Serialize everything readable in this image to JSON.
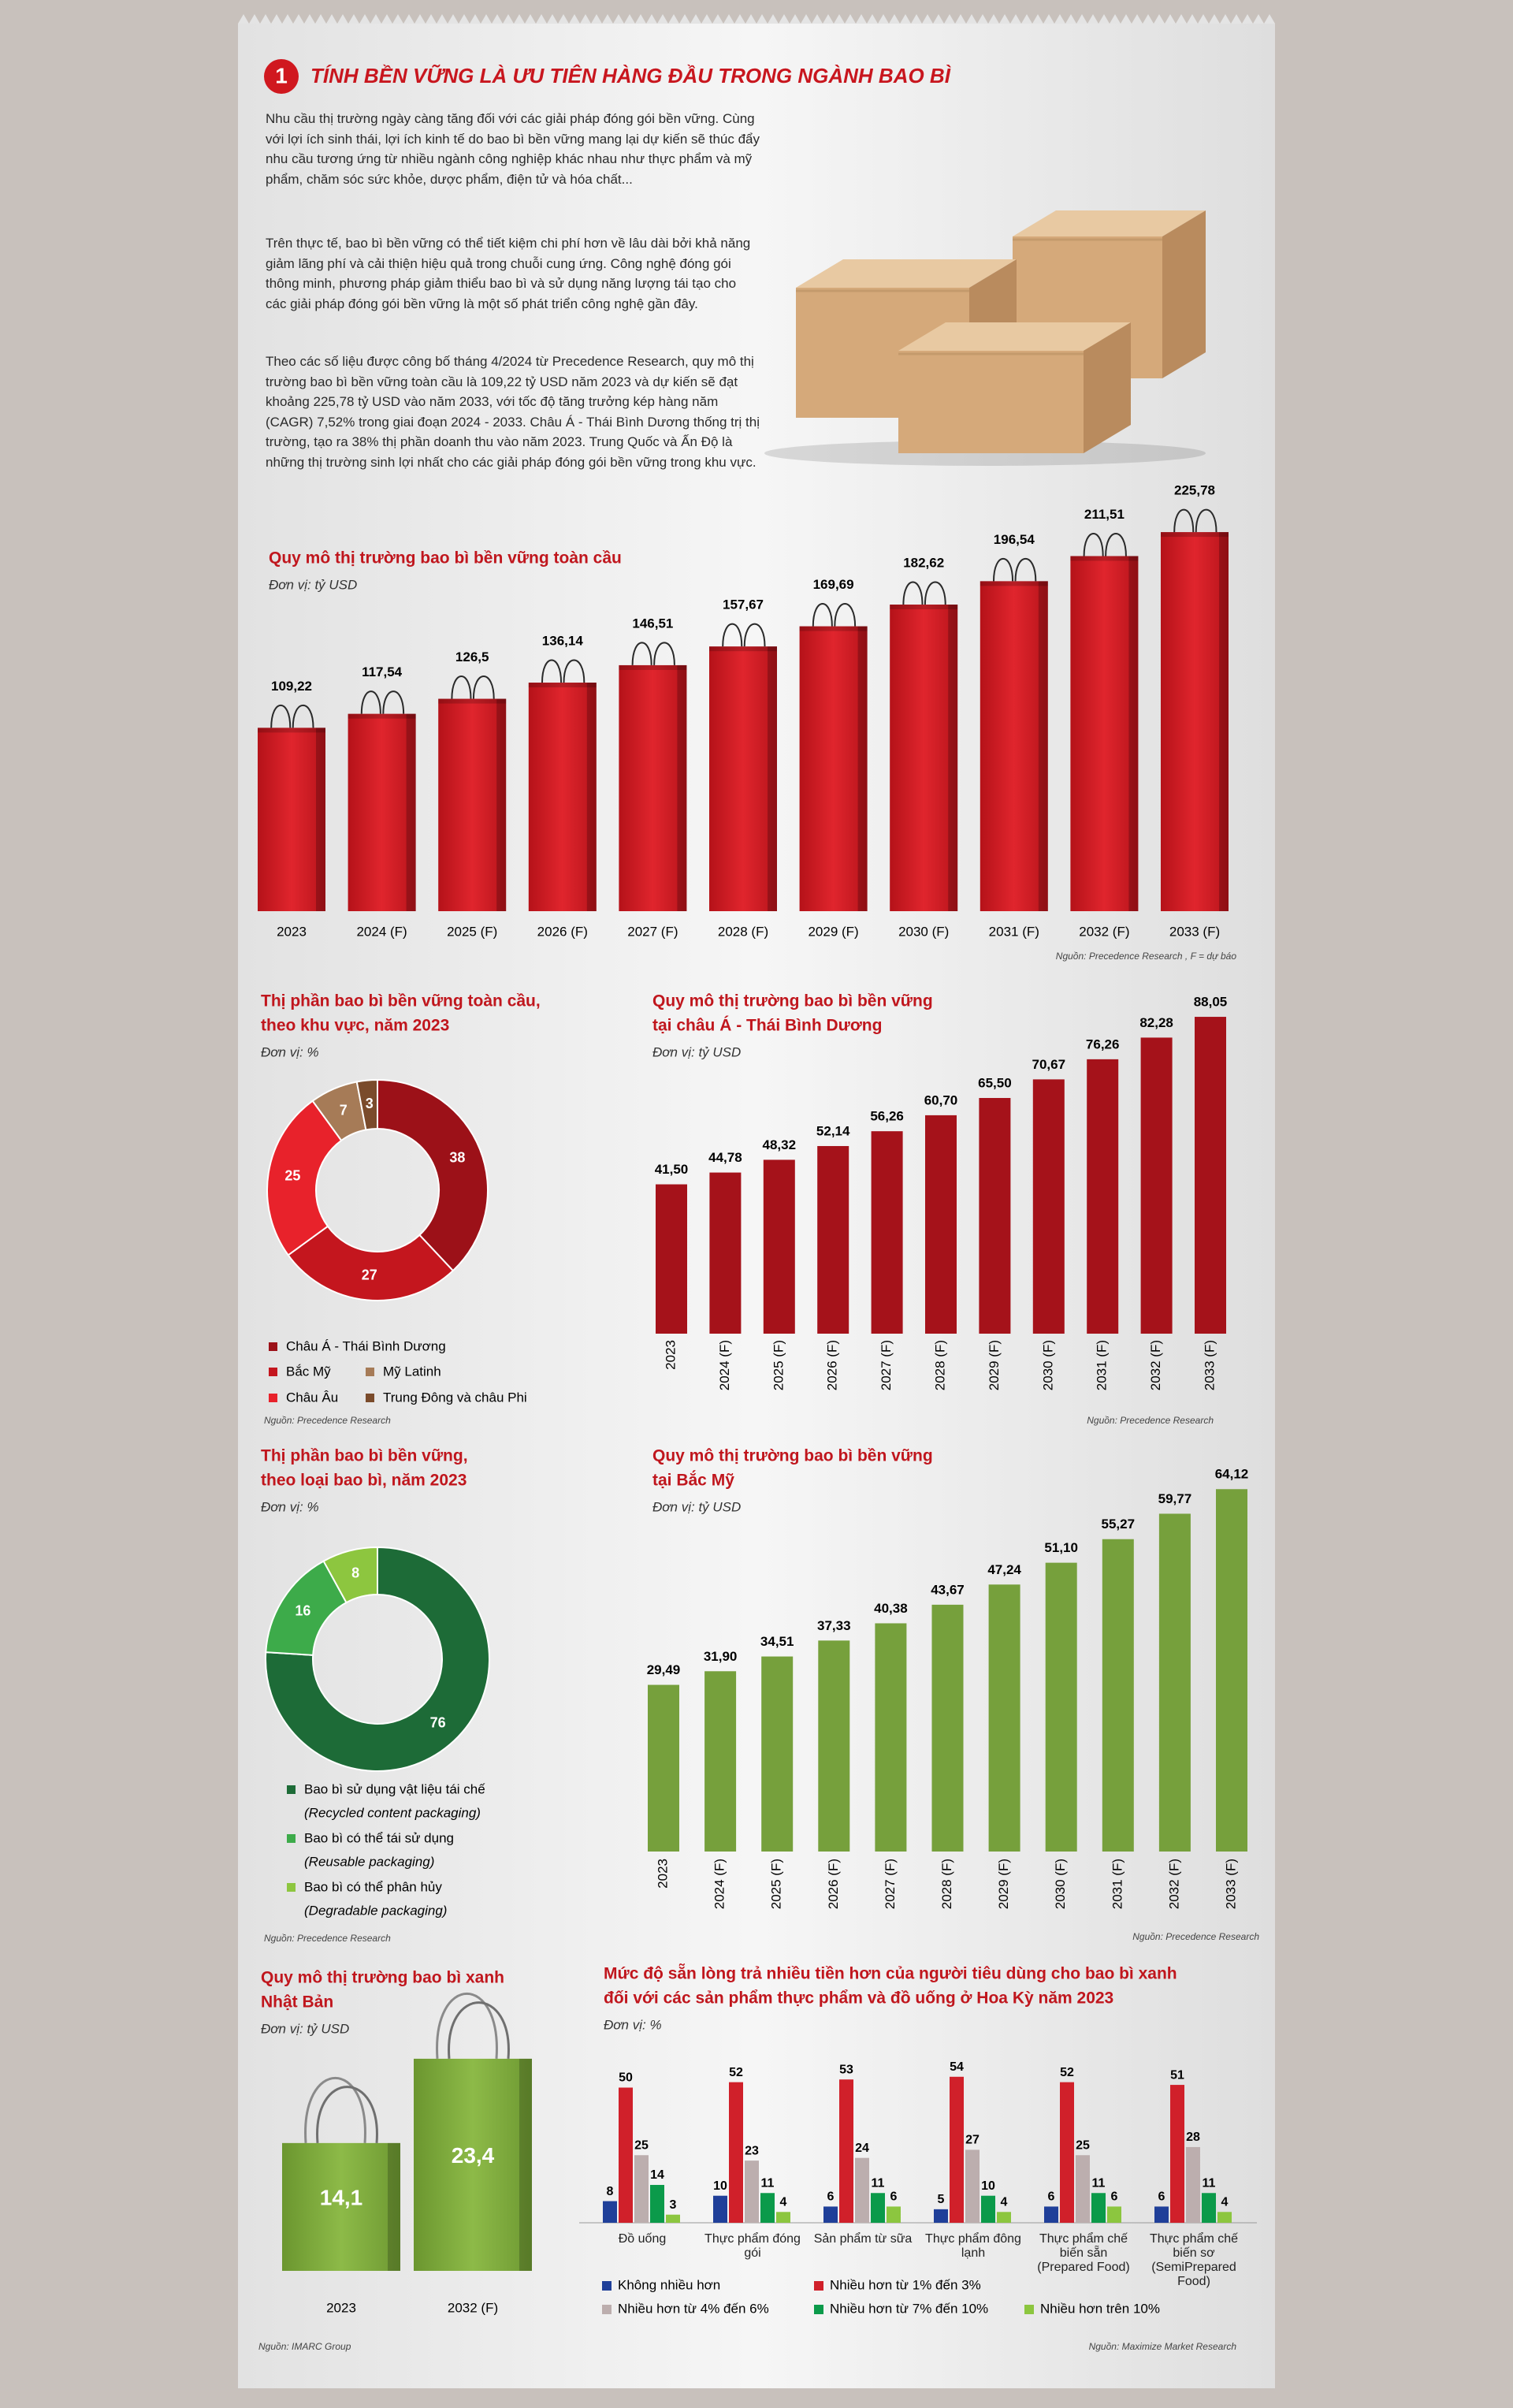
{
  "header": {
    "number": "1",
    "title": "TÍNH BỀN VỮNG LÀ ƯU TIÊN HÀNG ĐẦU TRONG NGÀNH BAO BÌ"
  },
  "paragraphs": [
    "Nhu cầu thị trường ngày càng tăng đối với các giải pháp đóng gói bền vững. Cùng với lợi ích sinh thái, lợi ích kinh tế do bao bì bền vững mang lại dự kiến sẽ thúc đẩy nhu cầu tương ứng từ nhiều ngành công nghiệp khác nhau như thực phẩm và mỹ phẩm, chăm sóc sức khỏe, dược phẩm, điện tử và hóa chất...",
    "Trên thực tế, bao bì bền vững có thể tiết kiệm chi phí hơn về lâu dài bởi khả năng giảm lãng phí và cải thiện hiệu quả trong chuỗi cung ứng. Công nghệ đóng gói thông minh, phương pháp giảm thiểu bao bì và sử dụng năng lượng tái tạo cho các giải pháp đóng gói bền vững là một số phát triển công nghệ gần đây.",
    "Theo các số liệu được công bố tháng 4/2024 từ Precedence Research, quy mô thị trường bao bì bền vững toàn cầu là 109,22 tỷ USD năm 2023 và dự kiến sẽ đạt khoảng 225,78 tỷ USD vào năm 2033, với tốc độ tăng trưởng kép hàng năm (CAGR) 7,52% trong giai đoạn 2024 - 2033. Châu Á - Thái Bình Dương thống trị thị trường, tạo ra 38% thị phần doanh thu vào năm 2023. Trung Quốc và Ấn Độ là những thị trường sinh lợi nhất cho các giải pháp đóng gói bền vững trong khu vực."
  ],
  "chart_data": [
    {
      "type": "bar",
      "title": [
        "Quy mô thị trường bao bì bền vững toàn cầu"
      ],
      "subtitle": "Đơn vị: tỷ USD",
      "categories": [
        "2023",
        "2024 (F)",
        "2025 (F)",
        "2026 (F)",
        "2027 (F)",
        "2028 (F)",
        "2029 (F)",
        "2030 (F)",
        "2031 (F)",
        "2032 (F)",
        "2033 (F)"
      ],
      "values": [
        109.22,
        117.54,
        126.5,
        136.14,
        146.51,
        157.67,
        169.69,
        182.62,
        196.54,
        211.51,
        225.78
      ],
      "value_labels": [
        "109,22",
        "117,54",
        "126,5",
        "136,14",
        "146,51",
        "157,67",
        "169,69",
        "182,62",
        "196,54",
        "211,51",
        "225,78"
      ],
      "color": "#c8161e",
      "source": "Nguồn: Precedence Research , F = dự báo"
    },
    {
      "type": "pie",
      "title": [
        "Thị phần bao bì bền vững toàn cầu,",
        "theo khu vực, năm 2023"
      ],
      "subtitle": "Đơn vị: %",
      "categories": [
        "Châu Á - Thái Bình Dương",
        "Bắc Mỹ",
        "Châu Âu",
        "Mỹ Latinh",
        "Trung Đông và châu Phi"
      ],
      "values": [
        38,
        27,
        25,
        7,
        3
      ],
      "colors": [
        "#9c1118",
        "#c4161e",
        "#e8222b",
        "#a67b57",
        "#7a4b2b"
      ],
      "source": "Nguồn: Precedence Research"
    },
    {
      "type": "bar",
      "title": [
        "Quy mô thị trường bao bì bền vững",
        "tại châu Á - Thái Bình Dương"
      ],
      "subtitle": "Đơn vị: tỷ USD",
      "categories": [
        "2023",
        "2024 (F)",
        "2025 (F)",
        "2026 (F)",
        "2027 (F)",
        "2028 (F)",
        "2029 (F)",
        "2030 (F)",
        "2031 (F)",
        "2032 (F)",
        "2033 (F)"
      ],
      "values": [
        41.5,
        44.78,
        48.32,
        52.14,
        56.26,
        60.7,
        65.5,
        70.67,
        76.26,
        82.28,
        88.05
      ],
      "value_labels": [
        "41,50",
        "44,78",
        "48,32",
        "52,14",
        "56,26",
        "60,70",
        "65,50",
        "70,67",
        "76,26",
        "82,28",
        "88,05"
      ],
      "color": "#a5121a",
      "source": "Nguồn: Precedence Research"
    },
    {
      "type": "pie",
      "title": [
        "Thị phần bao bì bền vững,",
        "theo loại bao bì, năm 2023"
      ],
      "subtitle": "Đơn vị: %",
      "categories": [
        "Bao bì sử dụng vật liệu tái chế",
        "Bao bì có thể tái sử dụng",
        "Bao bì có thể phân hủy"
      ],
      "category_notes": [
        "(Recycled content packaging)",
        "(Reusable packaging)",
        "(Degradable packaging)"
      ],
      "values": [
        76,
        16,
        8
      ],
      "colors": [
        "#1d6b37",
        "#3dab4a",
        "#8dc63f"
      ],
      "source": "Nguồn: Precedence Research"
    },
    {
      "type": "bar",
      "title": [
        "Quy mô thị trường bao bì bền vững",
        "tại Bắc Mỹ"
      ],
      "subtitle": "Đơn vị: tỷ USD",
      "categories": [
        "2023",
        "2024 (F)",
        "2025 (F)",
        "2026 (F)",
        "2027 (F)",
        "2028 (F)",
        "2029 (F)",
        "2030 (F)",
        "2031 (F)",
        "2032 (F)",
        "2033 (F)"
      ],
      "values": [
        29.49,
        31.9,
        34.51,
        37.33,
        40.38,
        43.67,
        47.24,
        51.1,
        55.27,
        59.77,
        64.12
      ],
      "value_labels": [
        "29,49",
        "31,90",
        "34,51",
        "37,33",
        "40,38",
        "43,67",
        "47,24",
        "51,10",
        "55,27",
        "59,77",
        "64,12"
      ],
      "color": "#76a03c",
      "source": "Nguồn: Precedence Research"
    },
    {
      "type": "bar",
      "title": [
        "Quy mô thị trường bao bì xanh",
        "Nhật Bản"
      ],
      "subtitle": "Đơn vị: tỷ USD",
      "categories": [
        "2023",
        "2032 (F)"
      ],
      "values": [
        14.1,
        23.4
      ],
      "value_labels": [
        "14,1",
        "23,4"
      ],
      "color": "#7aa43a",
      "source": "Nguồn: IMARC Group"
    },
    {
      "type": "bar",
      "title": [
        "Mức độ sẵn lòng trả nhiều tiền hơn của người tiêu dùng cho bao bì xanh",
        "đối với các sản phẩm thực phẩm và đồ uống ở Hoa Kỳ năm 2023"
      ],
      "subtitle": "Đơn vị: %",
      "categories": [
        "Đồ uống",
        "Thực phẩm đóng gói",
        "Sản phẩm từ sữa",
        "Thực phẩm đông lạnh",
        "Thực phẩm chế biến sẵn (Prepared Food)",
        "Thực phẩm chế biến sơ (SemiPrepared Food)"
      ],
      "series": [
        {
          "name": "Không nhiều hơn",
          "color": "#1f3f99",
          "values": [
            8,
            10,
            6,
            5,
            6,
            6
          ]
        },
        {
          "name": "Nhiều hơn từ 1% đến 3%",
          "color": "#d0202a",
          "values": [
            50,
            52,
            53,
            54,
            52,
            51
          ]
        },
        {
          "name": "Nhiều hơn từ 4% đến 6%",
          "color": "#bcaeae",
          "values": [
            25,
            23,
            24,
            27,
            25,
            28
          ]
        },
        {
          "name": "Nhiều hơn từ 7% đến 10%",
          "color": "#0b9a4a",
          "values": [
            14,
            11,
            11,
            10,
            11,
            11
          ]
        },
        {
          "name": "Nhiều hơn trên 10%",
          "color": "#8cc63f",
          "values": [
            3,
            4,
            6,
            4,
            6,
            4
          ]
        }
      ],
      "source": "Nguồn: Maximize Market Research"
    }
  ]
}
